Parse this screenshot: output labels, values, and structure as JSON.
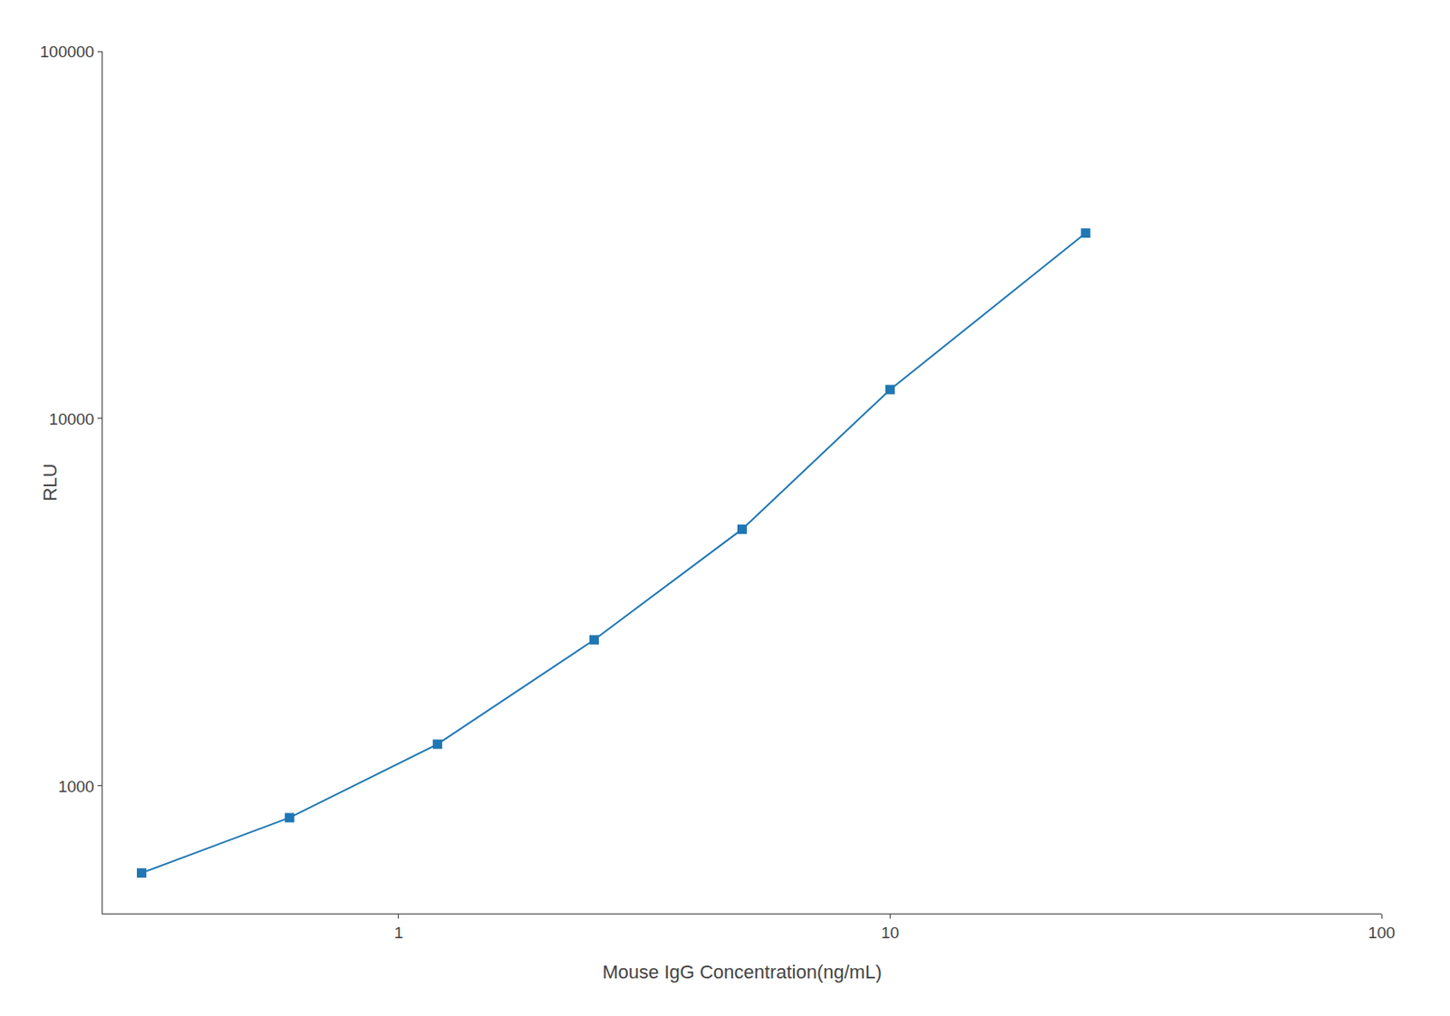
{
  "chart_data": {
    "type": "line",
    "x": [
      0.3,
      0.6,
      1.2,
      2.5,
      5.0,
      10.0,
      25.0
    ],
    "values": [
      580,
      820,
      1300,
      2500,
      5000,
      12000,
      32000
    ],
    "xlabel": "Mouse IgG Concentration(ng/mL)",
    "ylabel": "RLU",
    "xlim": [
      0.25,
      100
    ],
    "ylim": [
      450,
      100000
    ],
    "xticks": [
      1,
      10,
      100
    ],
    "yticks": [
      1000,
      10000,
      100000
    ],
    "log": true,
    "grid": false,
    "marker": "square"
  }
}
